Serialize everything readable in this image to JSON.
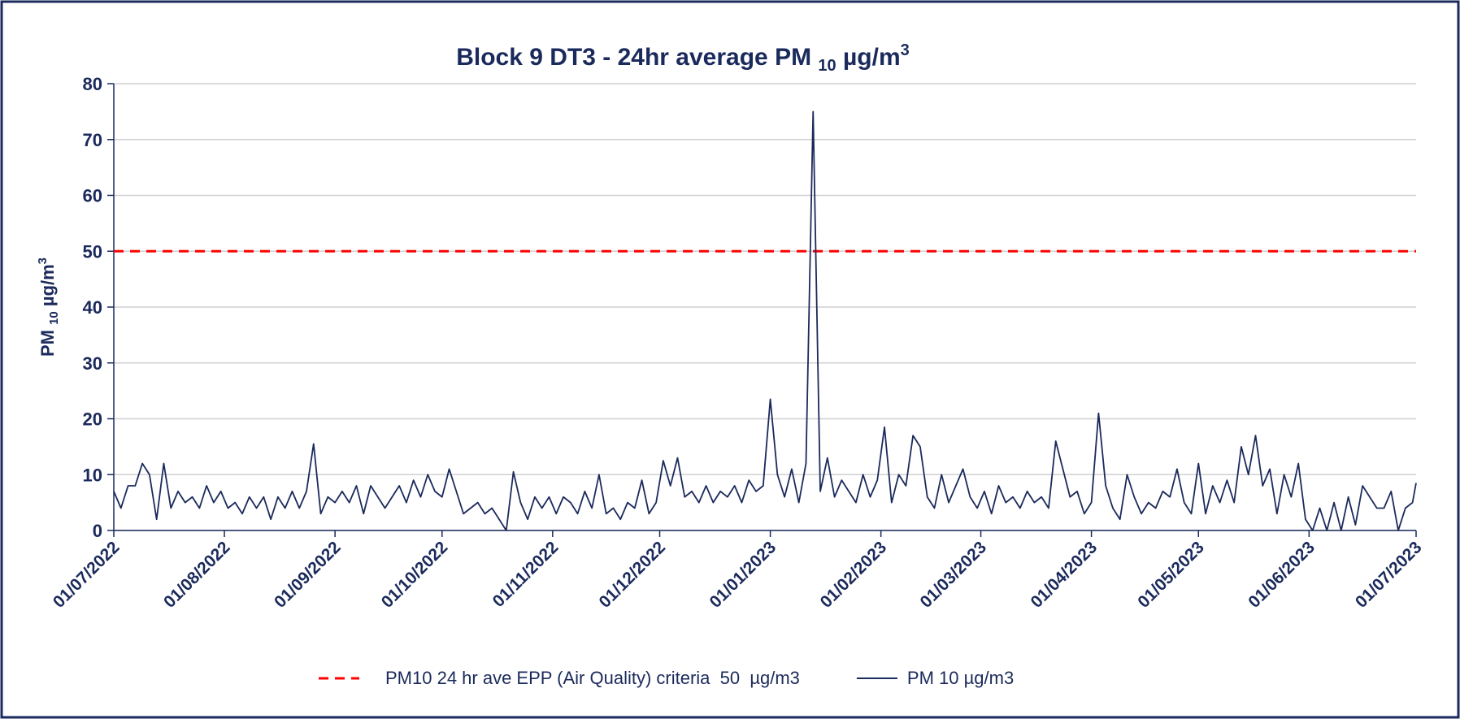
{
  "chart_data": {
    "type": "line",
    "title": "Block 9 DT3 - 24hr average PM",
    "title_sub": "10",
    "title_unit": "µg/m",
    "title_sup": "3",
    "y_label": "PM",
    "y_label_sub": "10",
    "y_label_unit": "µg/m",
    "y_label_sup": "3",
    "x": [
      "2022-07-01",
      "2022-07-03",
      "2022-07-05",
      "2022-07-07",
      "2022-07-09",
      "2022-07-11",
      "2022-07-13",
      "2022-07-15",
      "2022-07-17",
      "2022-07-19",
      "2022-07-21",
      "2022-07-23",
      "2022-07-25",
      "2022-07-27",
      "2022-07-29",
      "2022-07-31",
      "2022-08-02",
      "2022-08-04",
      "2022-08-06",
      "2022-08-08",
      "2022-08-10",
      "2022-08-12",
      "2022-08-14",
      "2022-08-16",
      "2022-08-18",
      "2022-08-20",
      "2022-08-22",
      "2022-08-24",
      "2022-08-26",
      "2022-08-28",
      "2022-08-30",
      "2022-09-01",
      "2022-09-03",
      "2022-09-05",
      "2022-09-07",
      "2022-09-09",
      "2022-09-11",
      "2022-09-13",
      "2022-09-15",
      "2022-09-17",
      "2022-09-19",
      "2022-09-21",
      "2022-09-23",
      "2022-09-25",
      "2022-09-27",
      "2022-09-29",
      "2022-10-01",
      "2022-10-03",
      "2022-10-05",
      "2022-10-07",
      "2022-10-09",
      "2022-10-11",
      "2022-10-13",
      "2022-10-15",
      "2022-10-17",
      "2022-10-19",
      "2022-10-21",
      "2022-10-23",
      "2022-10-25",
      "2022-10-27",
      "2022-10-29",
      "2022-10-31",
      "2022-11-02",
      "2022-11-04",
      "2022-11-06",
      "2022-11-08",
      "2022-11-10",
      "2022-11-12",
      "2022-11-14",
      "2022-11-16",
      "2022-11-18",
      "2022-11-20",
      "2022-11-22",
      "2022-11-24",
      "2022-11-26",
      "2022-11-28",
      "2022-11-30",
      "2022-12-02",
      "2022-12-04",
      "2022-12-06",
      "2022-12-08",
      "2022-12-10",
      "2022-12-12",
      "2022-12-14",
      "2022-12-16",
      "2022-12-18",
      "2022-12-20",
      "2022-12-22",
      "2022-12-24",
      "2022-12-26",
      "2022-12-28",
      "2022-12-30",
      "2023-01-01",
      "2023-01-03",
      "2023-01-05",
      "2023-01-07",
      "2023-01-09",
      "2023-01-11",
      "2023-01-13",
      "2023-01-15",
      "2023-01-17",
      "2023-01-19",
      "2023-01-21",
      "2023-01-23",
      "2023-01-25",
      "2023-01-27",
      "2023-01-29",
      "2023-01-31",
      "2023-02-02",
      "2023-02-04",
      "2023-02-06",
      "2023-02-08",
      "2023-02-10",
      "2023-02-12",
      "2023-02-14",
      "2023-02-16",
      "2023-02-18",
      "2023-02-20",
      "2023-02-22",
      "2023-02-24",
      "2023-02-26",
      "2023-02-28",
      "2023-03-02",
      "2023-03-04",
      "2023-03-06",
      "2023-03-08",
      "2023-03-10",
      "2023-03-12",
      "2023-03-14",
      "2023-03-16",
      "2023-03-18",
      "2023-03-20",
      "2023-03-22",
      "2023-03-24",
      "2023-03-26",
      "2023-03-28",
      "2023-03-30",
      "2023-04-01",
      "2023-04-03",
      "2023-04-05",
      "2023-04-07",
      "2023-04-09",
      "2023-04-11",
      "2023-04-13",
      "2023-04-15",
      "2023-04-17",
      "2023-04-19",
      "2023-04-21",
      "2023-04-23",
      "2023-04-25",
      "2023-04-27",
      "2023-04-29",
      "2023-05-01",
      "2023-05-03",
      "2023-05-05",
      "2023-05-07",
      "2023-05-09",
      "2023-05-11",
      "2023-05-13",
      "2023-05-15",
      "2023-05-17",
      "2023-05-19",
      "2023-05-21",
      "2023-05-23",
      "2023-05-25",
      "2023-05-27",
      "2023-05-29",
      "2023-05-31",
      "2023-06-02",
      "2023-06-04",
      "2023-06-06",
      "2023-06-08",
      "2023-06-10",
      "2023-06-12",
      "2023-06-14",
      "2023-06-16",
      "2023-06-18",
      "2023-06-20",
      "2023-06-22",
      "2023-06-24",
      "2023-06-26",
      "2023-06-28",
      "2023-06-30",
      "2023-07-01"
    ],
    "series": [
      {
        "name": "PM 10 µg/m3",
        "color": "#1b2a5c",
        "values": [
          7,
          4,
          8,
          8,
          12,
          10,
          2,
          12,
          4,
          7,
          5,
          6,
          4,
          8,
          5,
          7,
          4,
          5,
          3,
          6,
          4,
          6,
          2,
          6,
          4,
          7,
          4,
          7,
          15.5,
          3,
          6,
          5,
          7,
          5,
          8,
          3,
          8,
          6,
          4,
          6,
          8,
          5,
          9,
          6,
          10,
          7,
          6,
          11,
          7,
          3,
          4,
          5,
          3,
          4,
          2,
          0,
          10.5,
          5,
          2,
          6,
          4,
          6,
          3,
          6,
          5,
          3,
          7,
          4,
          10,
          3,
          4,
          2,
          5,
          4,
          9,
          3,
          5,
          12.5,
          8,
          13,
          6,
          7,
          5,
          8,
          5,
          7,
          6,
          8,
          5,
          9,
          7,
          8,
          23.5,
          10,
          6,
          11,
          5,
          12,
          75,
          7,
          13,
          6,
          9,
          7,
          5,
          10,
          6,
          9,
          18.5,
          5,
          10,
          8,
          17,
          15,
          6,
          4,
          10,
          5,
          8,
          11,
          6,
          4,
          7,
          3,
          8,
          5,
          6,
          4,
          7,
          5,
          6,
          4,
          16,
          11,
          6,
          7,
          3,
          5,
          21,
          8,
          4,
          2,
          10,
          6,
          3,
          5,
          4,
          7,
          6,
          11,
          5,
          3,
          12,
          3,
          8,
          5,
          9,
          5,
          15,
          10,
          17,
          8,
          11,
          3,
          10,
          6,
          12,
          2,
          0,
          4,
          0,
          5,
          0,
          6,
          1,
          8,
          6,
          4,
          4,
          7,
          0,
          4,
          5,
          8.5
        ]
      }
    ],
    "reference_lines": [
      {
        "name": "PM10 24 hr ave EPP (Air Quality) criteria  50  µg/m3",
        "value": 50,
        "color": "#ff0000"
      }
    ],
    "xlim": [
      "2022-07-01",
      "2023-07-01"
    ],
    "xticks": [
      {
        "value": "2022-07-01",
        "label": "01/07/2022"
      },
      {
        "value": "2022-08-01",
        "label": "01/08/2022"
      },
      {
        "value": "2022-09-01",
        "label": "01/09/2022"
      },
      {
        "value": "2022-10-01",
        "label": "01/10/2022"
      },
      {
        "value": "2022-11-01",
        "label": "01/11/2022"
      },
      {
        "value": "2022-12-01",
        "label": "01/12/2022"
      },
      {
        "value": "2023-01-01",
        "label": "01/01/2023"
      },
      {
        "value": "2023-02-01",
        "label": "01/02/2023"
      },
      {
        "value": "2023-03-01",
        "label": "01/03/2023"
      },
      {
        "value": "2023-04-01",
        "label": "01/04/2023"
      },
      {
        "value": "2023-05-01",
        "label": "01/05/2023"
      },
      {
        "value": "2023-06-01",
        "label": "01/06/2023"
      },
      {
        "value": "2023-07-01",
        "label": "01/07/2023"
      }
    ],
    "ylim": [
      0,
      80
    ],
    "yticks": [
      0,
      10,
      20,
      30,
      40,
      50,
      60,
      70,
      80
    ],
    "grid": true,
    "legend": "bottom"
  }
}
